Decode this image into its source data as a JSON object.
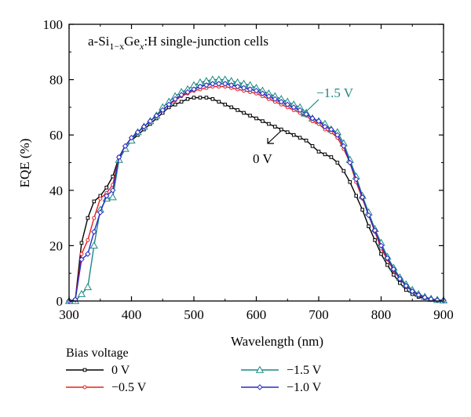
{
  "chart_data": {
    "type": "line",
    "title": "",
    "panel_label_parts": [
      "a-Si",
      "1−x",
      "Ge",
      "x",
      ":H single-junction cells"
    ],
    "xlabel": "Wavelength (nm)",
    "ylabel": "EQE (%)",
    "xlim": [
      300,
      900
    ],
    "ylim": [
      0,
      100
    ],
    "xticks": [
      300,
      400,
      500,
      600,
      700,
      800,
      900
    ],
    "yticks": [
      0,
      20,
      40,
      60,
      80,
      100
    ],
    "grid": false,
    "legend_title": "Bias voltage",
    "legend_position": "below",
    "annotations": [
      {
        "text": "0 V",
        "x": 605,
        "y": 51,
        "color": "#000000"
      },
      {
        "text": "−1.5 V",
        "x": 735,
        "y": 75,
        "color": "#1a8a82"
      }
    ],
    "x": [
      300,
      310,
      320,
      330,
      340,
      350,
      360,
      370,
      380,
      390,
      400,
      410,
      420,
      430,
      440,
      450,
      460,
      470,
      480,
      490,
      500,
      510,
      520,
      530,
      540,
      550,
      560,
      570,
      580,
      590,
      600,
      610,
      620,
      630,
      640,
      650,
      660,
      670,
      680,
      690,
      700,
      710,
      720,
      730,
      740,
      750,
      760,
      770,
      780,
      790,
      800,
      810,
      820,
      830,
      840,
      850,
      860,
      870,
      880,
      890,
      900
    ],
    "series": [
      {
        "name": "0 V",
        "color": "#000000",
        "marker": "square",
        "values": [
          0,
          0.5,
          21,
          30,
          36,
          38,
          41,
          45,
          52,
          55,
          58,
          60,
          62,
          64,
          66,
          68,
          70,
          71,
          72,
          73,
          73.5,
          73.5,
          73.5,
          73,
          72,
          71,
          70,
          69,
          68,
          67,
          66,
          65,
          64,
          63,
          62,
          61,
          60,
          59,
          58,
          56,
          54,
          53,
          52,
          50,
          47,
          43,
          38,
          33,
          27,
          22,
          17,
          13,
          9.5,
          6.5,
          4,
          2.5,
          1.5,
          1,
          0.5,
          0.3,
          0.2
        ]
      },
      {
        "name": "−0.5 V",
        "color": "#e52020",
        "marker": "circle",
        "values": [
          0,
          0.5,
          17,
          22,
          30,
          37,
          39,
          42,
          52,
          56,
          59,
          61,
          63,
          65,
          67,
          69,
          71,
          72.5,
          74,
          75,
          76,
          76.5,
          77,
          77.5,
          77.5,
          77.5,
          77,
          76.5,
          76,
          75.5,
          75,
          74,
          73,
          72,
          71,
          70,
          69,
          68,
          67,
          65,
          64,
          62,
          61,
          59,
          55,
          50,
          43,
          37,
          31,
          25,
          19,
          15,
          11,
          8,
          5.5,
          3.5,
          2,
          1.2,
          0.6,
          0.3,
          0.2
        ]
      },
      {
        "name": "−1.5 V",
        "color": "#1a8a82",
        "marker": "triangle",
        "values": [
          0,
          0,
          2.5,
          5,
          20,
          33,
          37,
          37.5,
          51,
          55,
          58,
          61,
          63,
          65,
          67,
          70,
          72,
          74,
          75.5,
          76.5,
          78,
          79,
          79.5,
          80,
          80,
          80,
          79.5,
          79,
          78.5,
          78,
          77,
          76,
          75,
          74,
          73,
          72,
          71,
          70,
          68,
          66,
          65,
          64,
          62,
          61,
          57,
          51,
          45,
          38,
          32,
          26,
          21,
          16,
          12,
          8.5,
          6,
          4,
          2.5,
          1.5,
          0.8,
          0.4,
          0.2
        ]
      },
      {
        "name": "−1.0 V",
        "color": "#2a2ac8",
        "marker": "diamond",
        "values": [
          0,
          0.5,
          15,
          17,
          25,
          32,
          38,
          40,
          52,
          56,
          59,
          61,
          63,
          65,
          67,
          69,
          71,
          73,
          74.5,
          75.5,
          76.5,
          77.5,
          78,
          78.5,
          78.5,
          78.5,
          78,
          77.5,
          77,
          76.5,
          76,
          75,
          74,
          73,
          72,
          71,
          70,
          69,
          67.5,
          66,
          65,
          63,
          62,
          60,
          56,
          50,
          44,
          37.5,
          31,
          25.5,
          20,
          15.5,
          11.5,
          8,
          5.5,
          3.5,
          2.2,
          1.3,
          0.7,
          0.3,
          0.2
        ]
      }
    ]
  }
}
